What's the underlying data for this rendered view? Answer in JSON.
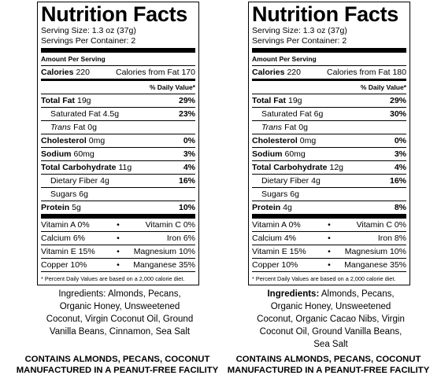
{
  "labels": [
    {
      "title": "Nutrition Facts",
      "serving_size": "Serving Size: 1.3 oz (37g)",
      "servings": "Servings Per Container: 2",
      "amount_per_serving": "Amount Per Serving",
      "calories": {
        "label": "Calories",
        "value": "220",
        "from_fat": "Calories from Fat 170"
      },
      "daily_value_header": "% Daily Value*",
      "nutrients": [
        {
          "name": "Total Fat",
          "amount": "19g",
          "dv": "29%",
          "bold": true
        },
        {
          "name": "Saturated Fat",
          "amount": "4.5g",
          "dv": "23%",
          "indent": true
        },
        {
          "italic": "Trans",
          "name": "Fat",
          "amount": "0g",
          "indent": true
        },
        {
          "name": "Cholesterol",
          "amount": "0mg",
          "dv": "0%",
          "bold": true
        },
        {
          "name": "Sodium",
          "amount": "60mg",
          "dv": "3%",
          "bold": true
        },
        {
          "name": "Total Carbohydrate",
          "amount": "11g",
          "dv": "4%",
          "bold": true
        },
        {
          "name": "Dietary Fiber",
          "amount": "4g",
          "dv": "16%",
          "indent": true
        },
        {
          "name": "Sugars",
          "amount": "6g",
          "indent": true
        },
        {
          "name": "Protein",
          "amount": "5g",
          "dv": "10%",
          "bold": true
        }
      ],
      "separator": "•",
      "vitamins": [
        [
          "Vitamin A 0%",
          "Vitamin C 0%"
        ],
        [
          "Calcium 6%",
          "Iron 6%"
        ],
        [
          "Vitamin E 15%",
          "Magnesium 10%"
        ],
        [
          "Copper 10%",
          "Manganese 35%"
        ]
      ],
      "footnote": "* Percent Daily Values are based on a 2,000 calorie diet.",
      "ingredients": {
        "heading": "Ingredients:",
        "text": "Almonds, Pecans, Organic Honey, Unsweetened Coconut, Virgin Coconut Oil, Ground Vanilla Beans, Cinnamon, Sea Salt"
      },
      "allergens": [
        "CONTAINS ALMONDS, PECANS, COCONUT",
        "MANUFACTURED IN A PEANUT-FREE FACILITY"
      ]
    },
    {
      "title": "Nutrition Facts",
      "serving_size": "Serving Size: 1.3 oz (37g)",
      "servings": "Servings Per Container: 2",
      "amount_per_serving": "Amount Per Serving",
      "calories": {
        "label": "Calories",
        "value": "220",
        "from_fat": "Calories from Fat 180"
      },
      "daily_value_header": "% Daily Value*",
      "nutrients": [
        {
          "name": "Total Fat",
          "amount": "19g",
          "dv": "29%",
          "bold": true
        },
        {
          "name": "Saturated Fat",
          "amount": "6g",
          "dv": "30%",
          "indent": true
        },
        {
          "italic": "Trans",
          "name": "Fat",
          "amount": "0g",
          "indent": true
        },
        {
          "name": "Cholesterol",
          "amount": "0mg",
          "dv": "0%",
          "bold": true
        },
        {
          "name": "Sodium",
          "amount": "60mg",
          "dv": "3%",
          "bold": true
        },
        {
          "name": "Total Carbohydrate",
          "amount": "12g",
          "dv": "4%",
          "bold": true
        },
        {
          "name": "Dietary Fiber",
          "amount": "4g",
          "dv": "16%",
          "indent": true
        },
        {
          "name": "Sugars",
          "amount": "6g",
          "indent": true
        },
        {
          "name": "Protein",
          "amount": "4g",
          "dv": "8%",
          "bold": true
        }
      ],
      "separator": "•",
      "vitamins": [
        [
          "Vitamin A 0%",
          "Vitamin C 0%"
        ],
        [
          "Calcium 4%",
          "Iron 8%"
        ],
        [
          "Vitamin E 15%",
          "Magnesium 10%"
        ],
        [
          "Copper 10%",
          "Manganese 35%"
        ]
      ],
      "footnote": "* Percent Daily Values are based on a 2,000 calorie diet.",
      "ingredients": {
        "heading": "Ingredients:",
        "text": "Almonds, Pecans, Organic Honey, Unsweetened Coconut, Organic Cacao Nibs, Virgin Coconut Oil, Ground Vanilla Beans, Sea Salt"
      },
      "allergens": [
        "CONTAINS ALMONDS, PECANS, COCONUT",
        "MANUFACTURED IN A PEANUT-FREE FACILITY"
      ]
    }
  ]
}
